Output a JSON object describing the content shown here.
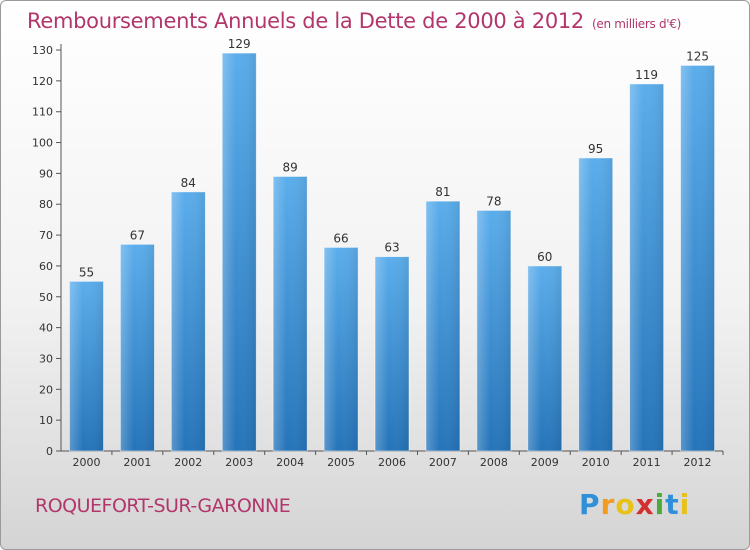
{
  "chart_data": {
    "type": "bar",
    "title": "Remboursements Annuels de la Dette de 2000 à 2012",
    "subtitle": "(en milliers d'€)",
    "categories": [
      "2000",
      "2001",
      "2002",
      "2003",
      "2004",
      "2005",
      "2006",
      "2007",
      "2008",
      "2009",
      "2010",
      "2011",
      "2012"
    ],
    "values": [
      55,
      67,
      84,
      129,
      89,
      66,
      63,
      81,
      78,
      60,
      95,
      119,
      125
    ],
    "ylim": [
      0,
      130
    ],
    "yticks": [
      0,
      10,
      20,
      30,
      40,
      50,
      60,
      70,
      80,
      90,
      100,
      110,
      120,
      130
    ],
    "grid": false,
    "bar_color": "#3a8fd6"
  },
  "city": "ROQUEFORT-SUR-GARONNE",
  "logo": {
    "text": "Proxiti",
    "letters": [
      {
        "ch": "P",
        "color": "#2f8fd9"
      },
      {
        "ch": "r",
        "color": "#f39b1f"
      },
      {
        "ch": "o",
        "color": "#e8c21b"
      },
      {
        "ch": "x",
        "color": "#d62f2f"
      },
      {
        "ch": "i",
        "color": "#4aab3c"
      },
      {
        "ch": "t",
        "color": "#2f8fd9"
      },
      {
        "ch": "i",
        "color": "#e8c21b"
      }
    ]
  }
}
